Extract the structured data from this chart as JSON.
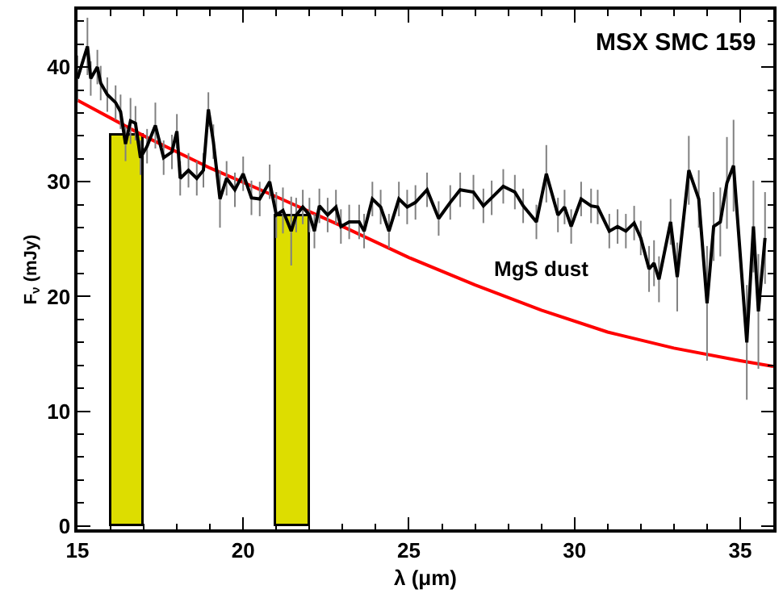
{
  "chart_data": {
    "type": "line",
    "title": "MSX SMC 159",
    "xlabel": "λ (μm)",
    "ylabel": "F$_{ν}$ (mJy)",
    "xlim": [
      15,
      36
    ],
    "xticks": [
      15,
      20,
      25,
      30,
      35
    ],
    "ylim": [
      -0.3,
      45
    ],
    "yticks": [
      0,
      10,
      20,
      30,
      40
    ],
    "grid": false,
    "legend": false,
    "marker": "none",
    "line_style": "solid",
    "series": [
      {
        "type": "bar",
        "color": "#dddd00",
        "x": [
          16.5,
          21.5
        ],
        "values": [
          34,
          27
        ]
      },
      {
        "name": "MgS dust",
        "color": "#ff0000",
        "x": [
          15,
          17,
          19,
          21,
          23,
          25,
          27,
          29,
          31,
          33,
          35,
          36
        ],
        "values": [
          37.1,
          34.0,
          31.2,
          28.7,
          26.1,
          23.4,
          21.0,
          18.8,
          16.9,
          15.5,
          14.4,
          13.9
        ]
      },
      {
        "color": "#000000",
        "x": [
          15.0,
          15.3,
          15.4,
          15.6,
          15.7,
          15.9,
          16.15,
          16.3,
          16.45,
          16.6,
          16.75,
          16.9,
          17.1,
          17.35,
          17.6,
          17.85,
          18.0,
          18.1,
          18.35,
          18.6,
          18.8,
          18.95,
          19.1,
          19.3,
          19.5,
          19.75,
          20.0,
          20.25,
          20.5,
          20.8,
          21.0,
          21.2,
          21.45,
          21.6,
          21.8,
          22.0,
          22.15,
          22.3,
          22.55,
          22.8,
          22.95,
          23.2,
          23.5,
          23.65,
          23.9,
          24.15,
          24.4,
          24.7,
          24.95,
          25.2,
          25.55,
          25.9,
          26.25,
          26.55,
          26.95,
          27.25,
          27.5,
          27.85,
          28.2,
          28.45,
          28.85,
          29.15,
          29.5,
          29.7,
          29.9,
          30.2,
          30.5,
          30.7,
          31.05,
          31.3,
          31.55,
          31.8,
          32.0,
          32.25,
          32.4,
          32.55,
          32.9,
          33.1,
          33.45,
          33.75,
          34.0,
          34.2,
          34.4,
          34.6,
          34.8,
          35.2,
          35.4,
          35.55,
          35.75
        ],
        "values": [
          39.0,
          41.8,
          39.0,
          40.0,
          38.6,
          37.6,
          36.9,
          36.1,
          33.3,
          35.3,
          35.1,
          32.1,
          33.1,
          34.9,
          32.1,
          32.6,
          34.4,
          30.3,
          31.0,
          30.3,
          31.0,
          36.3,
          33.5,
          28.5,
          30.3,
          29.3,
          30.7,
          28.6,
          28.5,
          30.0,
          27.1,
          27.5,
          25.7,
          27.1,
          27.8,
          27.1,
          25.7,
          27.9,
          27.1,
          27.8,
          26.1,
          26.5,
          26.5,
          25.7,
          28.5,
          27.8,
          25.7,
          28.5,
          27.8,
          28.2,
          29.3,
          26.8,
          28.2,
          29.3,
          29.1,
          27.9,
          28.6,
          29.6,
          29.1,
          27.9,
          26.5,
          30.7,
          27.1,
          27.8,
          26.1,
          28.5,
          27.9,
          27.8,
          25.7,
          26.1,
          25.7,
          26.4,
          25.1,
          22.4,
          22.9,
          21.5,
          26.5,
          21.7,
          31.0,
          28.5,
          19.4,
          26.1,
          26.5,
          29.9,
          31.4,
          16.0,
          26.1,
          18.7,
          25.1
        ],
        "errors": [
          2,
          2.5,
          1.5,
          1.5,
          1.5,
          1.5,
          1.5,
          1.5,
          1.5,
          2,
          1.5,
          1.5,
          1.5,
          2,
          1.5,
          1.5,
          1.5,
          1.5,
          1.5,
          1.5,
          1.5,
          1.5,
          1.5,
          2.5,
          1.5,
          1.5,
          1.5,
          1.5,
          1.5,
          1.5,
          2,
          2,
          3,
          1.5,
          1.5,
          1.5,
          1.5,
          1.5,
          1.5,
          1.5,
          1.5,
          1.5,
          1.5,
          1.5,
          1.5,
          1.5,
          1.5,
          1.5,
          1.5,
          1.5,
          1.5,
          1.5,
          1.5,
          1.5,
          1.5,
          1.5,
          1.5,
          1.5,
          1.5,
          1.5,
          1.5,
          2.5,
          1.5,
          1.5,
          1.5,
          1.5,
          1.5,
          1.5,
          1.5,
          1.5,
          1.5,
          1.5,
          1.5,
          2,
          2,
          2,
          2,
          3,
          3,
          2.5,
          5,
          3,
          3,
          4,
          4,
          5,
          4,
          5,
          4
        ]
      }
    ]
  }
}
